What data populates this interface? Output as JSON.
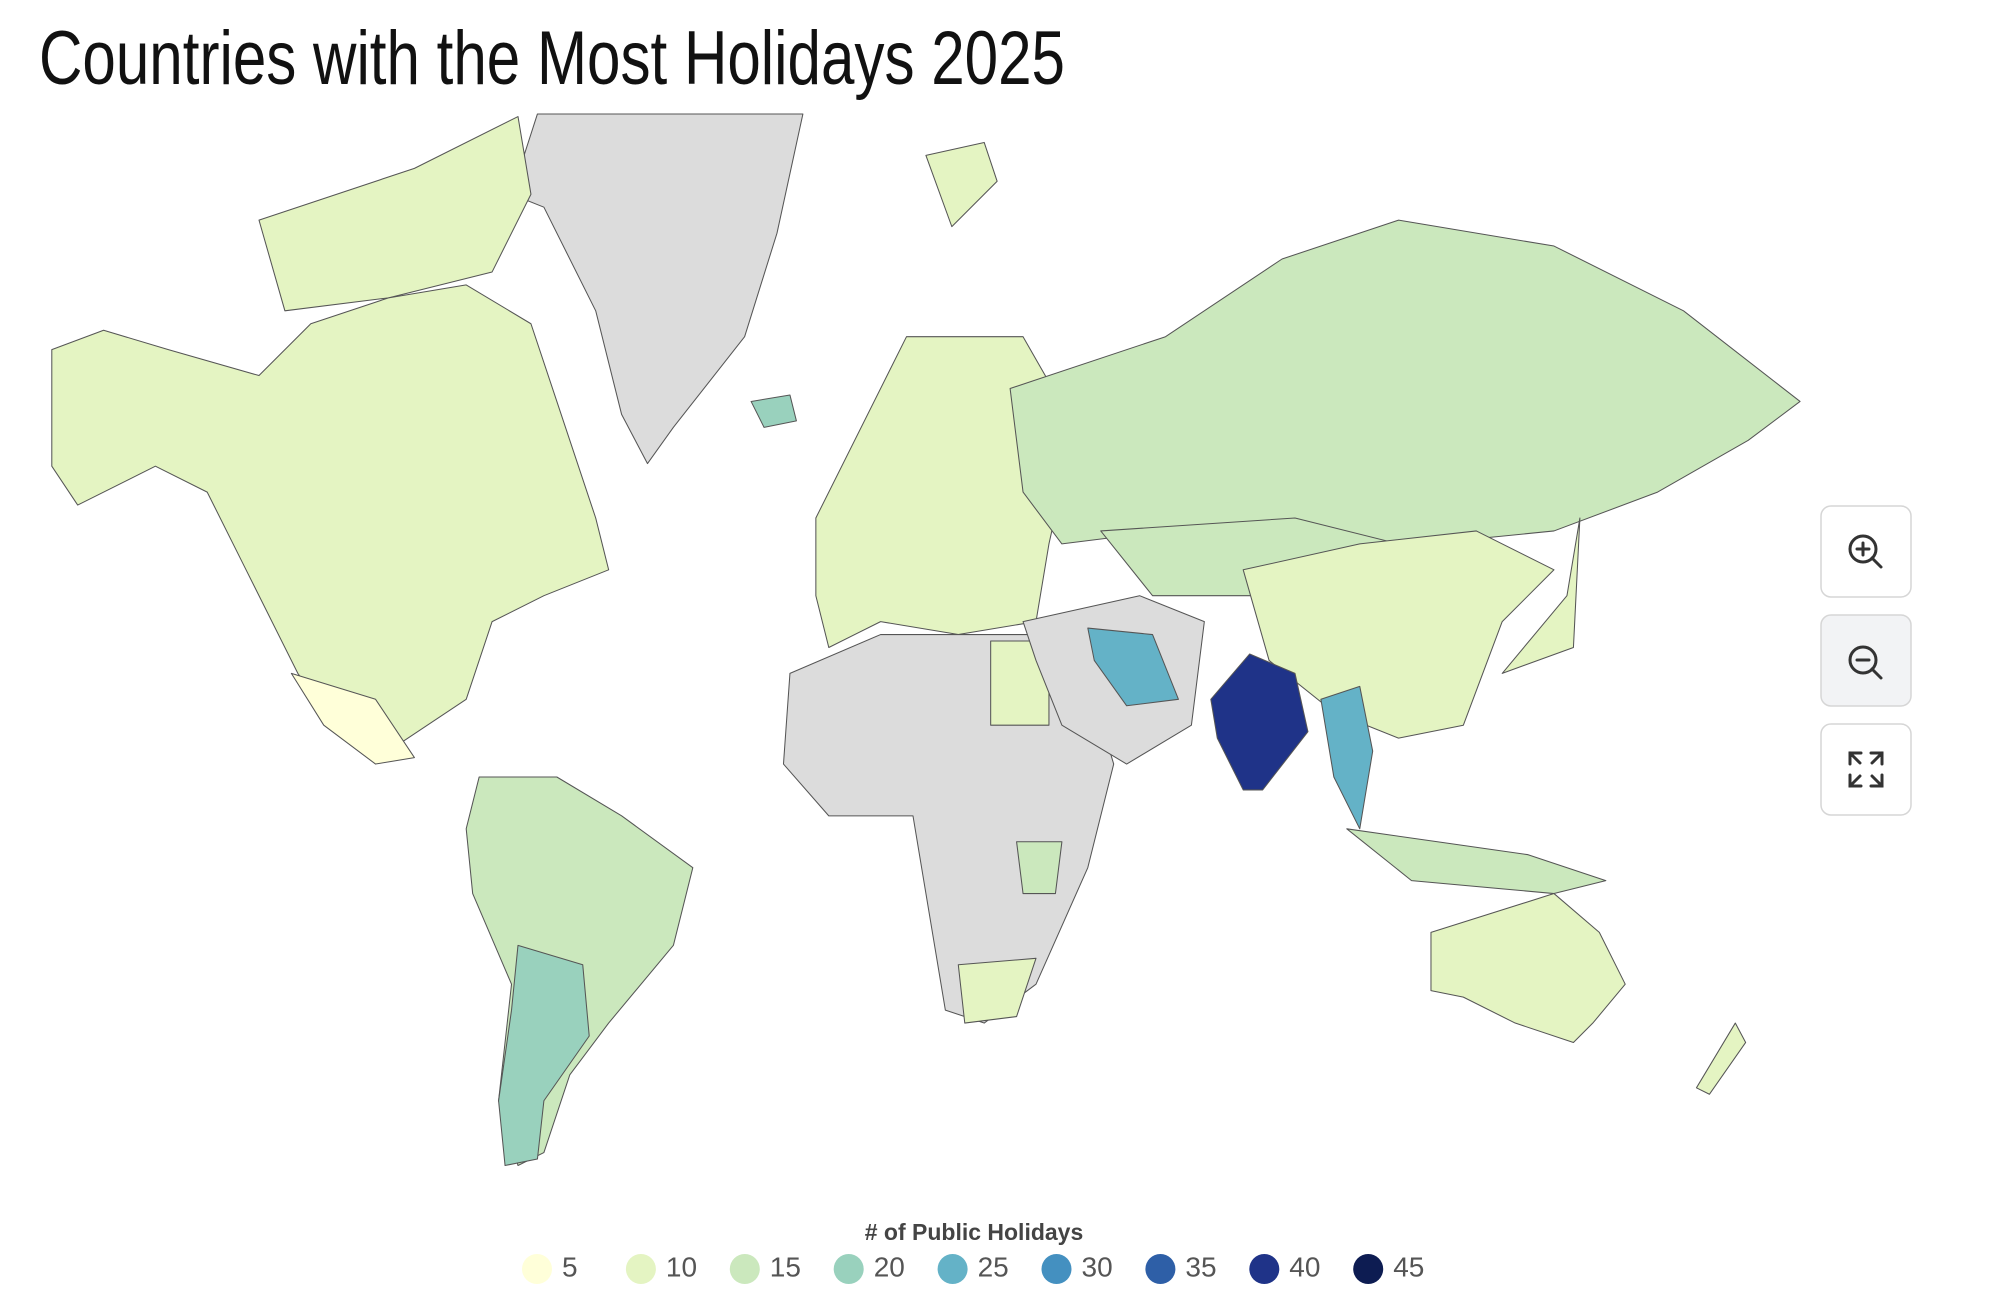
{
  "chart_data": {
    "type": "choropleth",
    "title": "Countries with the Most Holidays 2025",
    "legend_title": "# of Public Holidays",
    "legend": [
      {
        "value": 5,
        "color": "#ffffd9"
      },
      {
        "value": 10,
        "color": "#e4f4c2"
      },
      {
        "value": 15,
        "color": "#cbe8bd"
      },
      {
        "value": 20,
        "color": "#99d1bd"
      },
      {
        "value": 25,
        "color": "#64b2c7"
      },
      {
        "value": 30,
        "color": "#4490c0"
      },
      {
        "value": 35,
        "color": "#2e5fa7"
      },
      {
        "value": 40,
        "color": "#1f3388"
      },
      {
        "value": 45,
        "color": "#0d1c52"
      }
    ]
  }
}
